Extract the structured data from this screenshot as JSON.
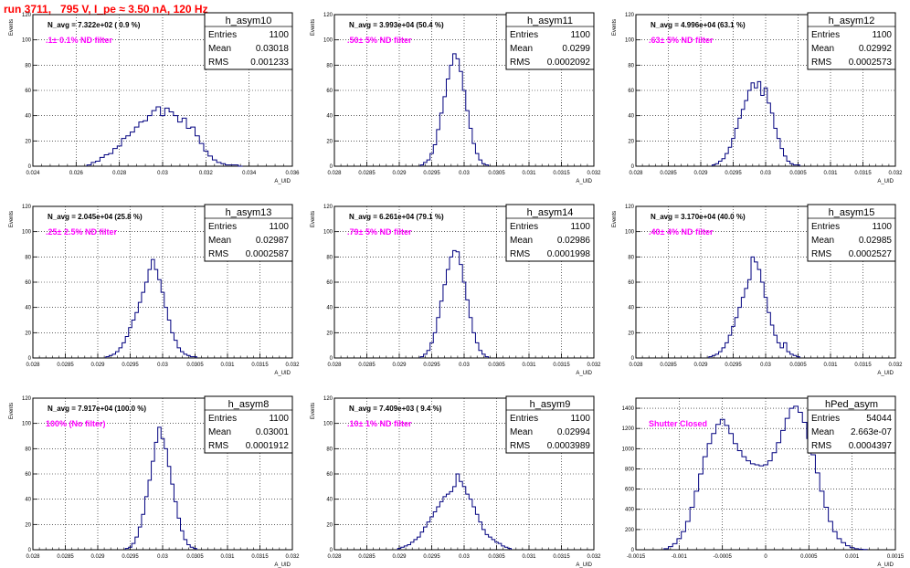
{
  "title": "run 3711,   795 V, I_pe ≈ 3.50 nA, 120 Hz",
  "colors": {
    "histogram": "#00007f",
    "title": "#ff0000",
    "annotation": "#ff00ff",
    "grid": "#000000"
  },
  "chart_data": [
    {
      "type": "bar",
      "title": "h_asym10",
      "annotation": "N_avg = 7.322e+02 ( 0.9 %)",
      "filter": ".1± 0.1% ND filter",
      "stats": {
        "entries": "1100",
        "mean": "0.03018",
        "rms": "0.001233"
      },
      "xlabel": "A_UID",
      "ylabel": "Events",
      "xlim": [
        0.024,
        0.036
      ],
      "ylim": [
        0,
        120
      ],
      "xticks": [
        "0.024",
        "0.026",
        "0.028",
        "0.03",
        "0.032",
        "0.034",
        "0.036"
      ],
      "xtick_values": [
        0.024,
        0.026,
        0.028,
        0.03,
        0.032,
        0.034,
        0.036
      ],
      "yticks": [
        0,
        20,
        40,
        60,
        80,
        100,
        120
      ],
      "bins": {
        "x": [
          0.0266,
          0.0268,
          0.027,
          0.0272,
          0.0274,
          0.0276,
          0.0278,
          0.028,
          0.0282,
          0.0284,
          0.0286,
          0.0288,
          0.029,
          0.0292,
          0.0294,
          0.0296,
          0.0298,
          0.03,
          0.0302,
          0.0304,
          0.0306,
          0.0308,
          0.031,
          0.0312,
          0.0314,
          0.0316,
          0.0318,
          0.032,
          0.0322,
          0.0324,
          0.0326,
          0.0328,
          0.033,
          0.0332,
          0.0334,
          0.0336
        ],
        "counts": [
          1,
          3,
          4,
          7,
          9,
          10,
          14,
          16,
          22,
          24,
          27,
          31,
          35,
          36,
          40,
          44,
          47,
          40,
          46,
          43,
          40,
          35,
          38,
          30,
          31,
          24,
          18,
          12,
          8,
          5,
          3,
          2,
          1,
          1,
          1,
          0
        ]
      }
    },
    {
      "type": "bar",
      "title": "h_asym11",
      "annotation": "N_avg = 3.993e+04 (50.4 %)",
      "filter": ".50± 5% ND filter",
      "stats": {
        "entries": "1100",
        "mean": "0.0299",
        "rms": "0.0002092"
      },
      "xlabel": "A_UID",
      "ylabel": "Events",
      "xlim": [
        0.028,
        0.032
      ],
      "ylim": [
        0,
        120
      ],
      "xticks": [
        "0.028",
        "0.0285",
        "0.029",
        "0.0295",
        "0.03",
        "0.0305",
        "0.031",
        "0.0315",
        "0.032"
      ],
      "xtick_values": [
        0.028,
        0.0285,
        0.029,
        0.0295,
        0.03,
        0.0305,
        0.031,
        0.0315,
        0.032
      ],
      "yticks": [
        0,
        20,
        40,
        60,
        80,
        100,
        120
      ],
      "bins": {
        "x": [
          0.02935,
          0.0294,
          0.02945,
          0.0295,
          0.02955,
          0.0296,
          0.02965,
          0.0297,
          0.02975,
          0.0298,
          0.02985,
          0.0299,
          0.02995,
          0.03,
          0.03005,
          0.0301,
          0.03015,
          0.0302,
          0.03025,
          0.0303,
          0.03035
        ],
        "counts": [
          1,
          3,
          5,
          10,
          17,
          29,
          42,
          55,
          69,
          80,
          89,
          85,
          75,
          60,
          44,
          30,
          18,
          10,
          5,
          2,
          1
        ]
      }
    },
    {
      "type": "bar",
      "title": "h_asym12",
      "annotation": "N_avg = 4.996e+04 (63.1 %)",
      "filter": ".63± 5% ND filter",
      "stats": {
        "entries": "1100",
        "mean": "0.02992",
        "rms": "0.0002573"
      },
      "xlabel": "A_UID",
      "ylabel": "Events",
      "xlim": [
        0.028,
        0.032
      ],
      "ylim": [
        0,
        120
      ],
      "xticks": [
        "0.028",
        "0.0285",
        "0.029",
        "0.0295",
        "0.03",
        "0.0305",
        "0.031",
        "0.0315",
        "0.032"
      ],
      "xtick_values": [
        0.028,
        0.0285,
        0.029,
        0.0295,
        0.03,
        0.0305,
        0.031,
        0.0315,
        0.032
      ],
      "yticks": [
        0,
        20,
        40,
        60,
        80,
        100,
        120
      ],
      "bins": {
        "x": [
          0.0292,
          0.02925,
          0.0293,
          0.02935,
          0.0294,
          0.02945,
          0.0295,
          0.02955,
          0.0296,
          0.02965,
          0.0297,
          0.02975,
          0.0298,
          0.02985,
          0.0299,
          0.02995,
          0.03,
          0.03005,
          0.0301,
          0.03015,
          0.0302,
          0.03025,
          0.0303,
          0.03035,
          0.0304,
          0.03045,
          0.0305
        ],
        "counts": [
          1,
          2,
          4,
          6,
          10,
          15,
          22,
          30,
          38,
          45,
          52,
          60,
          66,
          62,
          67,
          56,
          62,
          50,
          42,
          30,
          22,
          14,
          8,
          4,
          2,
          1,
          1
        ]
      }
    },
    {
      "type": "bar",
      "title": "h_asym13",
      "annotation": "N_avg = 2.045e+04 (25.8 %)",
      "filter": ".25± 2.5% ND filter",
      "stats": {
        "entries": "1100",
        "mean": "0.02987",
        "rms": "0.0002587"
      },
      "xlabel": "A_UID",
      "ylabel": "Events",
      "xlim": [
        0.028,
        0.032
      ],
      "ylim": [
        0,
        120
      ],
      "xticks": [
        "0.028",
        "0.0285",
        "0.029",
        "0.0295",
        "0.03",
        "0.0305",
        "0.031",
        "0.0315",
        "0.032"
      ],
      "xtick_values": [
        0.028,
        0.0285,
        0.029,
        0.0295,
        0.03,
        0.0305,
        0.031,
        0.0315,
        0.032
      ],
      "yticks": [
        0,
        20,
        40,
        60,
        80,
        100,
        120
      ],
      "bins": {
        "x": [
          0.02915,
          0.0292,
          0.02925,
          0.0293,
          0.02935,
          0.0294,
          0.02945,
          0.0295,
          0.02955,
          0.0296,
          0.02965,
          0.0297,
          0.02975,
          0.0298,
          0.02985,
          0.0299,
          0.02995,
          0.03,
          0.03005,
          0.0301,
          0.03015,
          0.0302,
          0.03025,
          0.0303,
          0.03035,
          0.0304,
          0.03045,
          0.0305
        ],
        "counts": [
          1,
          2,
          3,
          5,
          8,
          12,
          17,
          24,
          30,
          36,
          44,
          52,
          60,
          70,
          78,
          70,
          62,
          52,
          40,
          30,
          20,
          14,
          8,
          5,
          3,
          2,
          1,
          1
        ]
      }
    },
    {
      "type": "bar",
      "title": "h_asym14",
      "annotation": "N_avg = 6.261e+04 (79.1 %)",
      "filter": ".79± 5% ND filter",
      "stats": {
        "entries": "1100",
        "mean": "0.02986",
        "rms": "0.0001998"
      },
      "xlabel": "A_UID",
      "ylabel": "Events",
      "xlim": [
        0.028,
        0.032
      ],
      "ylim": [
        0,
        120
      ],
      "xticks": [
        "0.028",
        "0.0285",
        "0.029",
        "0.0295",
        "0.03",
        "0.0305",
        "0.031",
        "0.0315",
        "0.032"
      ],
      "xtick_values": [
        0.028,
        0.0285,
        0.029,
        0.0295,
        0.03,
        0.0305,
        0.031,
        0.0315,
        0.032
      ],
      "yticks": [
        0,
        20,
        40,
        60,
        80,
        100,
        120
      ],
      "bins": {
        "x": [
          0.02935,
          0.0294,
          0.02945,
          0.0295,
          0.02955,
          0.0296,
          0.02965,
          0.0297,
          0.02975,
          0.0298,
          0.02985,
          0.0299,
          0.02995,
          0.03,
          0.03005,
          0.0301,
          0.03015,
          0.0302,
          0.03025,
          0.0303,
          0.03035
        ],
        "counts": [
          1,
          3,
          6,
          12,
          20,
          32,
          45,
          58,
          70,
          80,
          85,
          84,
          74,
          60,
          46,
          32,
          20,
          12,
          6,
          3,
          1
        ]
      }
    },
    {
      "type": "bar",
      "title": "h_asym15",
      "annotation": "N_avg = 3.170e+04 (40.0 %)",
      "filter": ".40± 4% ND filter",
      "stats": {
        "entries": "1100",
        "mean": "0.02985",
        "rms": "0.0002527"
      },
      "xlabel": "A_UID",
      "ylabel": "Events",
      "xlim": [
        0.028,
        0.032
      ],
      "ylim": [
        0,
        120
      ],
      "xticks": [
        "0.028",
        "0.0285",
        "0.029",
        "0.0295",
        "0.03",
        "0.0305",
        "0.031",
        "0.0315",
        "0.032"
      ],
      "xtick_values": [
        0.028,
        0.0285,
        0.029,
        0.0295,
        0.03,
        0.0305,
        0.031,
        0.0315,
        0.032
      ],
      "yticks": [
        0,
        20,
        40,
        60,
        80,
        100,
        120
      ],
      "bins": {
        "x": [
          0.02915,
          0.0292,
          0.02925,
          0.0293,
          0.02935,
          0.0294,
          0.02945,
          0.0295,
          0.02955,
          0.0296,
          0.02965,
          0.0297,
          0.02975,
          0.0298,
          0.02985,
          0.0299,
          0.02995,
          0.03,
          0.03005,
          0.0301,
          0.03015,
          0.0302,
          0.03025,
          0.0303,
          0.03035,
          0.0304,
          0.03045,
          0.0305
        ],
        "counts": [
          1,
          2,
          3,
          5,
          8,
          12,
          18,
          25,
          32,
          40,
          48,
          55,
          62,
          80,
          76,
          70,
          60,
          48,
          36,
          26,
          18,
          12,
          8,
          12,
          5,
          3,
          2,
          1
        ]
      }
    },
    {
      "type": "bar",
      "title": "h_asym8",
      "annotation": "N_avg = 7.917e+04 (100.0 %)",
      "filter": "100% (No filter)",
      "stats": {
        "entries": "1100",
        "mean": "0.03001",
        "rms": "0.0001912"
      },
      "xlabel": "A_UID",
      "ylabel": "Events",
      "xlim": [
        0.028,
        0.032
      ],
      "ylim": [
        0,
        120
      ],
      "xticks": [
        "0.028",
        "0.0285",
        "0.029",
        "0.0295",
        "0.03",
        "0.0305",
        "0.031",
        "0.0315",
        "0.032"
      ],
      "xtick_values": [
        0.028,
        0.0285,
        0.029,
        0.0295,
        0.03,
        0.0305,
        0.031,
        0.0315,
        0.032
      ],
      "yticks": [
        0,
        20,
        40,
        60,
        80,
        100,
        120
      ],
      "bins": {
        "x": [
          0.02945,
          0.0295,
          0.02955,
          0.0296,
          0.02965,
          0.0297,
          0.02975,
          0.0298,
          0.02985,
          0.0299,
          0.02995,
          0.03,
          0.03005,
          0.0301,
          0.03015,
          0.0302,
          0.03025,
          0.0303,
          0.03035,
          0.0304,
          0.03045,
          0.0305
        ],
        "counts": [
          1,
          2,
          5,
          10,
          18,
          28,
          42,
          55,
          70,
          85,
          97,
          88,
          80,
          66,
          52,
          38,
          25,
          15,
          8,
          4,
          2,
          1
        ]
      }
    },
    {
      "type": "bar",
      "title": "h_asym9",
      "annotation": "N_avg = 7.409e+03 ( 9.4 %)",
      "filter": ".10± 1% ND filter",
      "stats": {
        "entries": "1100",
        "mean": "0.02994",
        "rms": "0.0003989"
      },
      "xlabel": "A_UID",
      "ylabel": "Events",
      "xlim": [
        0.028,
        0.032
      ],
      "ylim": [
        0,
        120
      ],
      "xticks": [
        "0.028",
        "0.0285",
        "0.029",
        "0.0295",
        "0.03",
        "0.0305",
        "0.031",
        "0.0315",
        "0.032"
      ],
      "xtick_values": [
        0.028,
        0.0285,
        0.029,
        0.0295,
        0.03,
        0.0305,
        0.031,
        0.0315,
        0.032
      ],
      "yticks": [
        0,
        20,
        40,
        60,
        80,
        100,
        120
      ],
      "bins": {
        "x": [
          0.029,
          0.02905,
          0.0291,
          0.02915,
          0.0292,
          0.02925,
          0.0293,
          0.02935,
          0.0294,
          0.02945,
          0.0295,
          0.02955,
          0.0296,
          0.02965,
          0.0297,
          0.02975,
          0.0298,
          0.02985,
          0.0299,
          0.02995,
          0.03,
          0.03005,
          0.0301,
          0.03015,
          0.0302,
          0.03025,
          0.0303,
          0.03035,
          0.0304,
          0.03045,
          0.0305,
          0.03055,
          0.0306,
          0.03065,
          0.0307
        ],
        "counts": [
          1,
          2,
          3,
          4,
          6,
          8,
          10,
          14,
          18,
          22,
          26,
          30,
          34,
          38,
          42,
          44,
          46,
          50,
          60,
          54,
          50,
          44,
          40,
          34,
          28,
          22,
          16,
          12,
          10,
          8,
          6,
          5,
          3,
          2,
          1
        ]
      }
    },
    {
      "type": "bar",
      "title": "hPed_asym",
      "annotation": "",
      "filter": "Shutter Closed",
      "stats": {
        "entries": "54044",
        "mean": "2.663e-07",
        "rms": "0.0004397"
      },
      "xlabel": "A_UID",
      "ylabel": "",
      "xlim": [
        -0.0015,
        0.0015
      ],
      "ylim": [
        0,
        1500
      ],
      "xticks": [
        "-0.0015",
        "-0.001",
        "-0.0005",
        "0",
        "0.0005",
        "0.001",
        "0.0015"
      ],
      "xtick_values": [
        -0.0015,
        -0.001,
        -0.0005,
        0,
        0.0005,
        0.001,
        0.0015
      ],
      "yticks": [
        0,
        200,
        400,
        600,
        800,
        1000,
        1200,
        1400
      ],
      "bins": {
        "x": [
          -0.00115,
          -0.0011,
          -0.00105,
          -0.001,
          -0.00095,
          -0.0009,
          -0.00085,
          -0.0008,
          -0.00075,
          -0.0007,
          -0.00065,
          -0.0006,
          -0.00055,
          -0.0005,
          -0.00045,
          -0.0004,
          -0.00035,
          -0.0003,
          -0.00025,
          -0.0002,
          -0.00015,
          -0.0001,
          -5e-05,
          0,
          5e-05,
          0.0001,
          0.00015,
          0.0002,
          0.00025,
          0.0003,
          0.00035,
          0.0004,
          0.00045,
          0.0005,
          0.00055,
          0.0006,
          0.00065,
          0.0007,
          0.00075,
          0.0008,
          0.00085,
          0.0009,
          0.00095,
          0.001,
          0.00105,
          0.0011,
          0.00115
        ],
        "counts": [
          10,
          30,
          60,
          110,
          180,
          280,
          420,
          580,
          750,
          920,
          1050,
          1150,
          1240,
          1290,
          1230,
          1150,
          1050,
          980,
          920,
          880,
          850,
          840,
          830,
          840,
          880,
          960,
          1060,
          1180,
          1300,
          1400,
          1420,
          1360,
          1260,
          1100,
          940,
          760,
          580,
          420,
          280,
          180,
          110,
          70,
          40,
          20,
          10,
          5,
          2
        ]
      }
    }
  ]
}
